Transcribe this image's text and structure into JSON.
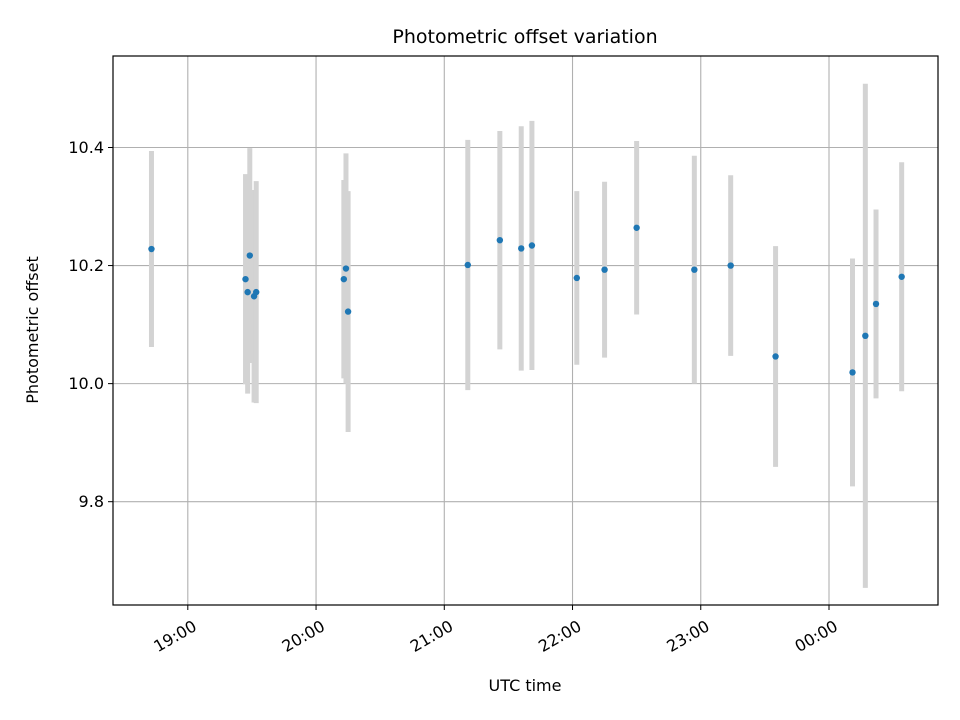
{
  "chart_data": {
    "type": "scatter",
    "title": "Photometric offset variation",
    "xlabel": "UTC time",
    "ylabel": "Photometric offset",
    "x_ticks": [
      {
        "value": "19:00",
        "label": "19:00"
      },
      {
        "value": "20:00",
        "label": "20:00"
      },
      {
        "value": "21:00",
        "label": "21:00"
      },
      {
        "value": "22:00",
        "label": "22:00"
      },
      {
        "value": "23:00",
        "label": "23:00"
      },
      {
        "value": "24:00",
        "label": "00:00"
      }
    ],
    "y_ticks": [
      9.8,
      10.0,
      10.2,
      10.4
    ],
    "xlim": [
      "18:25",
      "24:51"
    ],
    "ylim": [
      9.625,
      10.555
    ],
    "grid": true,
    "point_color": "#1f77b4",
    "errorbar_color": "#d3d3d3",
    "points": [
      {
        "x": "18:43",
        "y": 10.228,
        "err": 0.166
      },
      {
        "x": "19:27",
        "y": 10.177,
        "err": 0.178
      },
      {
        "x": "19:28",
        "y": 10.155,
        "err": 0.172
      },
      {
        "x": "19:29",
        "y": 10.217,
        "err": 0.182
      },
      {
        "x": "19:31",
        "y": 10.148,
        "err": 0.18
      },
      {
        "x": "19:32",
        "y": 10.155,
        "err": 0.188
      },
      {
        "x": "20:13",
        "y": 10.177,
        "err": 0.168
      },
      {
        "x": "20:14",
        "y": 10.195,
        "err": 0.195
      },
      {
        "x": "20:15",
        "y": 10.122,
        "err": 0.204
      },
      {
        "x": "21:11",
        "y": 10.201,
        "err": 0.212
      },
      {
        "x": "21:26",
        "y": 10.243,
        "err": 0.185
      },
      {
        "x": "21:36",
        "y": 10.229,
        "err": 0.207
      },
      {
        "x": "21:41",
        "y": 10.234,
        "err": 0.211
      },
      {
        "x": "22:02",
        "y": 10.179,
        "err": 0.147
      },
      {
        "x": "22:15",
        "y": 10.193,
        "err": 0.149
      },
      {
        "x": "22:30",
        "y": 10.264,
        "err": 0.147
      },
      {
        "x": "22:57",
        "y": 10.193,
        "err": 0.193
      },
      {
        "x": "23:14",
        "y": 10.2,
        "err": 0.153
      },
      {
        "x": "23:35",
        "y": 10.046,
        "err": 0.187
      },
      {
        "x": "24:11",
        "y": 10.019,
        "err": 0.193
      },
      {
        "x": "24:17",
        "y": 10.081,
        "err": 0.427
      },
      {
        "x": "24:22",
        "y": 10.135,
        "err": 0.16
      },
      {
        "x": "24:34",
        "y": 10.181,
        "err": 0.194
      }
    ]
  }
}
